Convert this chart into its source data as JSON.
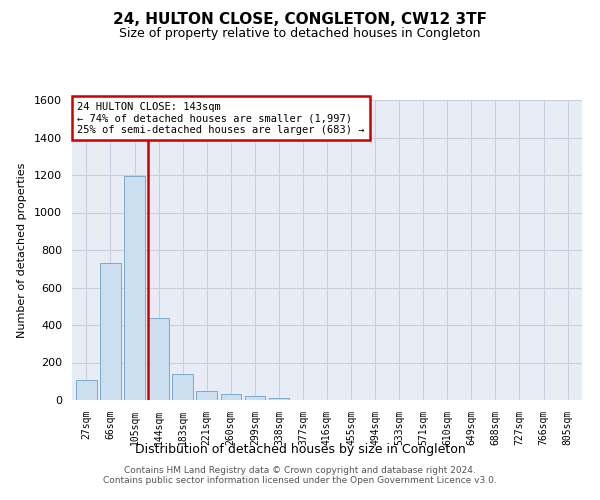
{
  "title1": "24, HULTON CLOSE, CONGLETON, CW12 3TF",
  "title2": "Size of property relative to detached houses in Congleton",
  "xlabel": "Distribution of detached houses by size in Congleton",
  "ylabel": "Number of detached properties",
  "footer1": "Contains HM Land Registry data © Crown copyright and database right 2024.",
  "footer2": "Contains public sector information licensed under the Open Government Licence v3.0.",
  "bar_labels": [
    "27sqm",
    "66sqm",
    "105sqm",
    "144sqm",
    "183sqm",
    "221sqm",
    "260sqm",
    "299sqm",
    "338sqm",
    "377sqm",
    "416sqm",
    "455sqm",
    "494sqm",
    "533sqm",
    "571sqm",
    "610sqm",
    "649sqm",
    "688sqm",
    "727sqm",
    "766sqm",
    "805sqm"
  ],
  "bar_values": [
    105,
    730,
    1195,
    435,
    140,
    50,
    30,
    20,
    10,
    0,
    0,
    0,
    0,
    0,
    0,
    0,
    0,
    0,
    0,
    0,
    0
  ],
  "bar_color": "#ccdff0",
  "bar_edge_color": "#7aaaca",
  "highlight_bar_index": 3,
  "highlight_color": "#cc0000",
  "annotation_line1": "24 HULTON CLOSE: 143sqm",
  "annotation_line2": "← 74% of detached houses are smaller (1,997)",
  "annotation_line3": "25% of semi-detached houses are larger (683) →",
  "ylim_max": 1600,
  "yticks": [
    0,
    200,
    400,
    600,
    800,
    1000,
    1200,
    1400,
    1600
  ],
  "grid_color": "#c8cfe0",
  "bg_color": "#e8edf5"
}
